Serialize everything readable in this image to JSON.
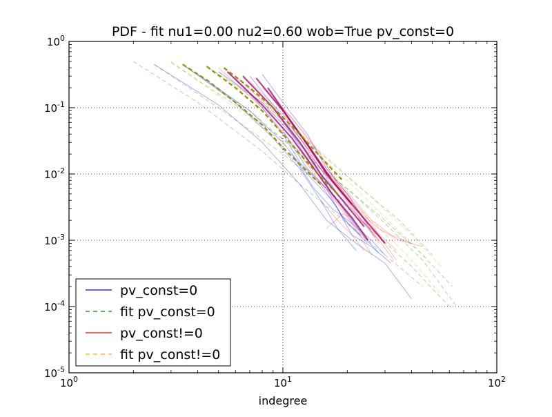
{
  "chart_data": {
    "type": "line",
    "title": "PDF - fit nu1=0.00 nu2=0.60 wob=True pv_const=0",
    "xlabel": "indegree",
    "ylabel": "",
    "xscale": "log",
    "yscale": "log",
    "xlim": [
      1,
      100
    ],
    "ylim": [
      1e-05,
      1
    ],
    "x_ticks": [
      {
        "value": 1,
        "base": "10",
        "exp": "0"
      },
      {
        "value": 10,
        "base": "10",
        "exp": "1"
      },
      {
        "value": 100,
        "base": "10",
        "exp": "2"
      }
    ],
    "y_ticks": [
      {
        "value": 1,
        "base": "10",
        "exp": "0"
      },
      {
        "value": 0.1,
        "base": "10",
        "exp": "-1"
      },
      {
        "value": 0.01,
        "base": "10",
        "exp": "-2"
      },
      {
        "value": 0.001,
        "base": "10",
        "exp": "-3"
      },
      {
        "value": 0.0001,
        "base": "10",
        "exp": "-4"
      },
      {
        "value": 1e-05,
        "base": "10",
        "exp": "-5"
      }
    ],
    "grid": true,
    "legend_position": "lower-left",
    "legend": [
      {
        "label": "pv_const=0",
        "color": "#0000ff",
        "style": "solid"
      },
      {
        "label": "fit pv_const=0",
        "color": "#008000",
        "style": "dashed"
      },
      {
        "label": "pv_const!=0",
        "color": "#ff0000",
        "style": "solid"
      },
      {
        "label": "fit pv_const!=0",
        "color": "#ffa500",
        "style": "dashed"
      }
    ],
    "series": [
      {
        "group": "fit pv_const=0",
        "x": [
          2,
          4,
          8,
          12,
          20,
          30,
          45
        ],
        "y": [
          0.5,
          0.12,
          0.022,
          0.007,
          0.0018,
          0.0006,
          0.0002
        ]
      },
      {
        "group": "fit pv_const=0",
        "x": [
          2.5,
          5,
          10,
          16,
          25,
          40,
          60
        ],
        "y": [
          0.45,
          0.1,
          0.02,
          0.006,
          0.0016,
          0.0004,
          0.0001
        ]
      },
      {
        "group": "fit pv_const=0",
        "x": [
          3,
          6,
          12,
          20,
          30,
          45,
          62
        ],
        "y": [
          0.48,
          0.11,
          0.022,
          0.006,
          0.002,
          0.0006,
          0.0002
        ]
      },
      {
        "group": "fit pv_const=0",
        "x": [
          3.5,
          7,
          12,
          20,
          30,
          45,
          65
        ],
        "y": [
          0.42,
          0.09,
          0.02,
          0.006,
          0.0018,
          0.0005,
          0.0001
        ]
      },
      {
        "group": "fit pv_const=0",
        "x": [
          4.5,
          8,
          14,
          22,
          35,
          50
        ],
        "y": [
          0.4,
          0.12,
          0.025,
          0.007,
          0.002,
          0.0006
        ]
      },
      {
        "group": "fit pv_const!=0",
        "x": [
          3,
          6,
          10,
          16,
          25,
          38,
          55
        ],
        "y": [
          0.5,
          0.1,
          0.03,
          0.008,
          0.0022,
          0.0006,
          0.00015
        ]
      },
      {
        "group": "fit pv_const!=0",
        "x": [
          5,
          9,
          14,
          22,
          32,
          48
        ],
        "y": [
          0.35,
          0.08,
          0.022,
          0.006,
          0.0018,
          0.0005
        ]
      },
      {
        "group": "fit pv_const!=0",
        "x": [
          6,
          10,
          16,
          25,
          40,
          55
        ],
        "y": [
          0.3,
          0.07,
          0.018,
          0.005,
          0.0012,
          0.0004
        ]
      },
      {
        "group": "pv_const=0",
        "x": [
          2.5,
          5,
          8,
          12,
          16,
          22,
          30,
          40
        ],
        "y": [
          0.45,
          0.11,
          0.03,
          0.007,
          0.002,
          0.0009,
          0.00045,
          0.00013
        ]
      },
      {
        "group": "pv_const=0",
        "x": [
          3.5,
          6,
          9,
          12,
          15,
          18,
          22
        ],
        "y": [
          0.42,
          0.12,
          0.035,
          0.012,
          0.004,
          0.0015,
          0.0007
        ]
      },
      {
        "group": "pv_const=0",
        "x": [
          4,
          7,
          10,
          13,
          17,
          20,
          25
        ],
        "y": [
          0.32,
          0.09,
          0.03,
          0.01,
          0.004,
          0.0018,
          0.0009
        ]
      },
      {
        "group": "pv_const=0",
        "x": [
          5,
          8,
          11,
          14,
          17,
          20,
          24,
          28
        ],
        "y": [
          0.35,
          0.12,
          0.04,
          0.012,
          0.005,
          0.0025,
          0.0011,
          0.00065
        ]
      },
      {
        "group": "pv_const=0",
        "x": [
          6,
          8,
          10,
          12,
          15,
          18,
          21,
          26,
          32
        ],
        "y": [
          0.28,
          0.1,
          0.04,
          0.015,
          0.007,
          0.003,
          0.0012,
          0.0008,
          0.00045
        ]
      },
      {
        "group": "pv_const=0",
        "x": [
          7,
          9,
          12,
          15,
          18,
          22,
          27
        ],
        "y": [
          0.3,
          0.11,
          0.035,
          0.012,
          0.005,
          0.0025,
          0.0011
        ]
      },
      {
        "group": "pv_const=0",
        "x": [
          8,
          10,
          13,
          16,
          20,
          25
        ],
        "y": [
          0.32,
          0.12,
          0.04,
          0.012,
          0.005,
          0.0017
        ]
      },
      {
        "group": "pv_const=0",
        "x": [
          9,
          11,
          14,
          17,
          20,
          24
        ],
        "y": [
          0.1,
          0.04,
          0.015,
          0.005,
          0.0025,
          0.0012
        ]
      },
      {
        "group": "pv_const=0",
        "x": [
          10,
          13,
          16,
          19,
          23
        ],
        "y": [
          0.045,
          0.012,
          0.006,
          0.0022,
          0.0012
        ]
      },
      {
        "group": "pv_const=0",
        "x": [
          11,
          14,
          17,
          21,
          26,
          30
        ],
        "y": [
          0.02,
          0.006,
          0.003,
          0.0018,
          0.001,
          0.0006
        ]
      },
      {
        "group": "pv_const!=0",
        "x": [
          5,
          8,
          11,
          14,
          17,
          21,
          26
        ],
        "y": [
          0.4,
          0.1,
          0.03,
          0.01,
          0.0045,
          0.0018,
          0.0006
        ]
      },
      {
        "group": "pv_const!=0",
        "x": [
          6,
          9,
          12,
          15,
          18,
          22,
          27,
          33
        ],
        "y": [
          0.3,
          0.09,
          0.03,
          0.012,
          0.006,
          0.0025,
          0.0012,
          0.0005
        ]
      },
      {
        "group": "pv_const!=0",
        "x": [
          7,
          10,
          13,
          16,
          20,
          24,
          30
        ],
        "y": [
          0.25,
          0.08,
          0.025,
          0.012,
          0.005,
          0.0025,
          0.0009
        ]
      },
      {
        "group": "pv_const!=0",
        "x": [
          8,
          11,
          14,
          17,
          21,
          26,
          32,
          40
        ],
        "y": [
          0.2,
          0.07,
          0.025,
          0.01,
          0.0045,
          0.002,
          0.0012,
          0.0009
        ]
      },
      {
        "group": "pv_const!=0",
        "x": [
          9,
          12,
          15,
          18,
          22,
          28,
          35,
          45
        ],
        "y": [
          0.15,
          0.05,
          0.02,
          0.007,
          0.003,
          0.0015,
          0.001,
          0.0008
        ]
      },
      {
        "group": "pv_const!=0",
        "x": [
          10,
          13,
          16,
          20,
          24,
          28
        ],
        "y": [
          0.08,
          0.03,
          0.01,
          0.005,
          0.002,
          0.0009
        ]
      },
      {
        "group": "pv_const!=0",
        "x": [
          11,
          14,
          18,
          22,
          27,
          34
        ],
        "y": [
          0.05,
          0.018,
          0.007,
          0.003,
          0.0014,
          0.0007
        ]
      },
      {
        "group": "pv_const!=0",
        "x": [
          12,
          15,
          19,
          23,
          28
        ],
        "y": [
          0.03,
          0.012,
          0.005,
          0.0022,
          0.001
        ]
      },
      {
        "group": "pv_const!=0",
        "x": [
          13,
          16,
          19,
          22,
          26
        ],
        "y": [
          0.012,
          0.006,
          0.003,
          0.0015,
          0.0009
        ]
      },
      {
        "group": "pv_const!=0",
        "x": [
          15,
          18,
          21,
          24
        ],
        "y": [
          0.004,
          0.002,
          0.0012,
          0.0007
        ]
      },
      {
        "group": "pv_const!=0",
        "x": [
          16,
          19,
          23,
          28,
          34
        ],
        "y": [
          0.0015,
          0.0025,
          0.002,
          0.0012,
          0.0005
        ]
      },
      {
        "group": "overlap",
        "x": [
          5.5,
          8,
          11,
          14,
          17,
          21,
          25
        ],
        "y": [
          0.35,
          0.11,
          0.035,
          0.012,
          0.005,
          0.0022,
          0.001
        ]
      },
      {
        "group": "overlap",
        "x": [
          6.5,
          9,
          12,
          15,
          19,
          24
        ],
        "y": [
          0.3,
          0.1,
          0.03,
          0.01,
          0.004,
          0.0016
        ]
      },
      {
        "group": "overlap",
        "x": [
          7.5,
          10,
          13,
          16,
          20,
          25,
          30
        ],
        "y": [
          0.28,
          0.09,
          0.028,
          0.01,
          0.0042,
          0.0018,
          0.0009
        ]
      },
      {
        "group": "overlap",
        "x": [
          8.5,
          11,
          14,
          17,
          21
        ],
        "y": [
          0.2,
          0.06,
          0.02,
          0.008,
          0.0035
        ]
      }
    ]
  }
}
